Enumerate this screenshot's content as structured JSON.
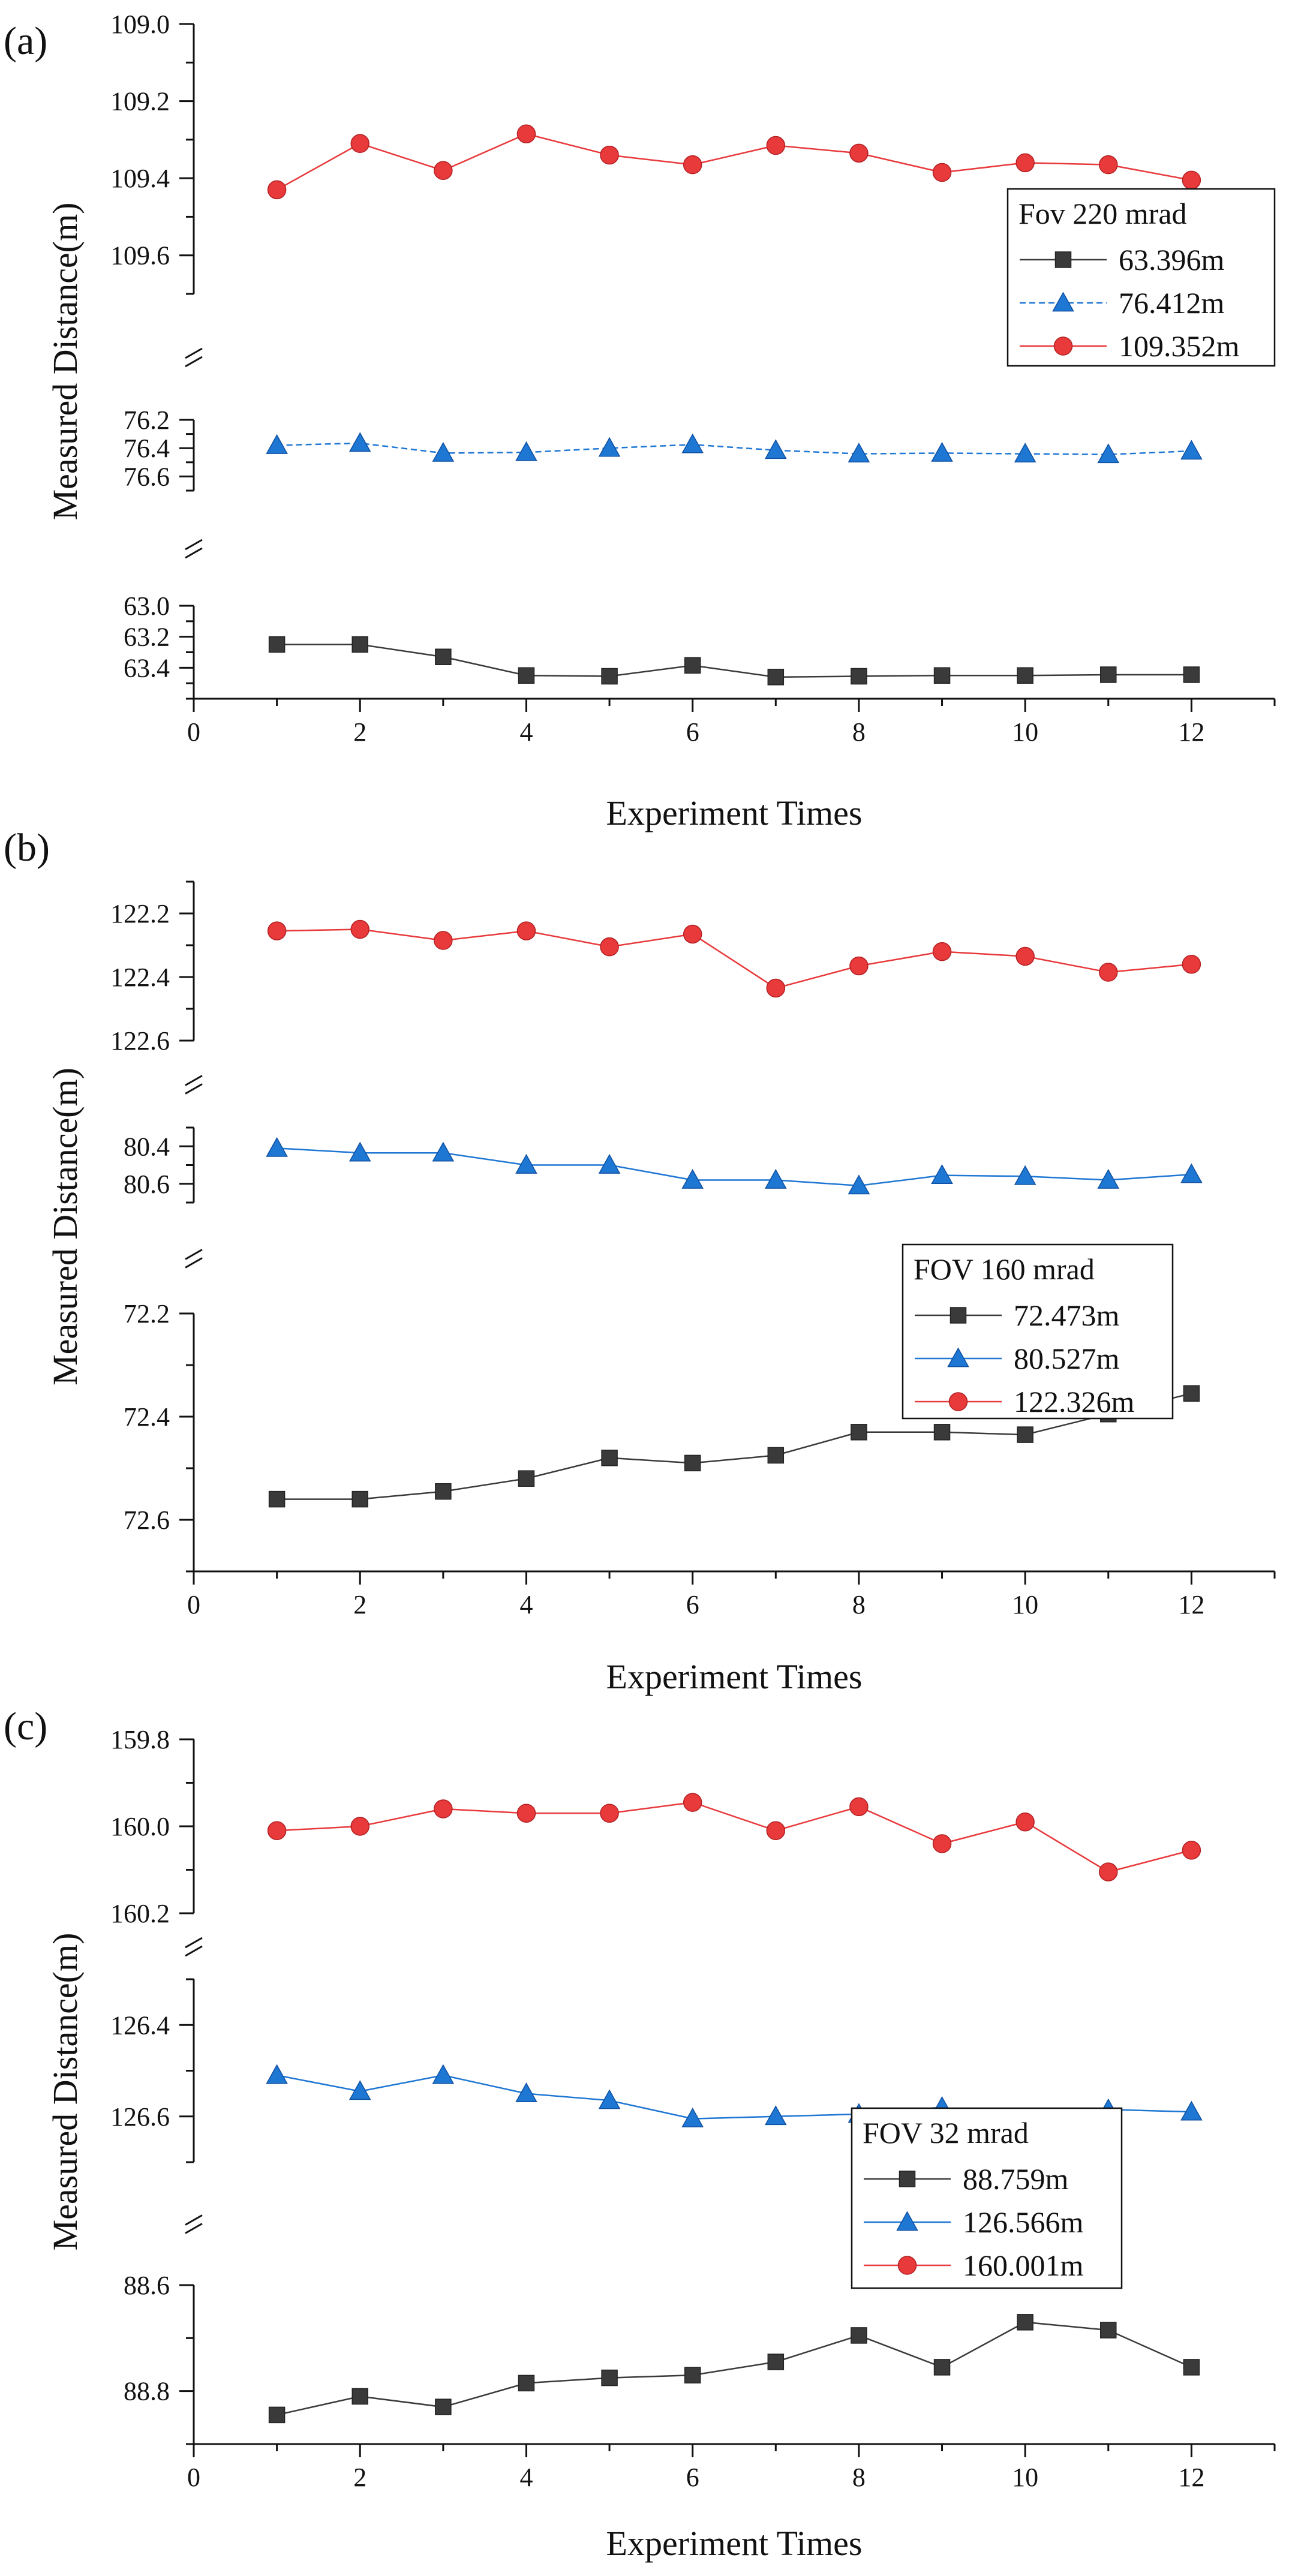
{
  "chart_data": [
    {
      "type": "line",
      "panel_label": "(a)",
      "xlabel": "Experiment Times",
      "ylabel": "Measured Distance(m)",
      "x": [
        1,
        2,
        3,
        4,
        5,
        6,
        7,
        8,
        9,
        10,
        11,
        12
      ],
      "xlim": [
        0,
        13
      ],
      "xticks": [
        "0",
        "2",
        "4",
        "6",
        "8",
        "10",
        "12"
      ],
      "broken_axis": true,
      "legend_title": "Fov 220 mrad",
      "legend_placement": "upper-right",
      "segments": [
        {
          "ylim": [
            63.0,
            63.6
          ],
          "yticks": [
            "63.0",
            "63.2",
            "63.4"
          ],
          "series": {
            "name": "63.396m",
            "marker": "square",
            "color": "#3a3a3a",
            "line": "solid",
            "values": [
              63.25,
              63.25,
              63.33,
              63.45,
              63.455,
              63.385,
              63.46,
              63.455,
              63.45,
              63.45,
              63.445,
              63.445
            ]
          }
        },
        {
          "ylim": [
            76.2,
            76.7
          ],
          "yticks": [
            "76.2",
            "76.4",
            "76.6"
          ],
          "series": {
            "name": "76.412m",
            "marker": "triangle",
            "color": "#1f77d4",
            "line": "dashed",
            "values": [
              76.38,
              76.365,
              76.435,
              76.43,
              76.4,
              76.375,
              76.415,
              76.44,
              76.435,
              76.44,
              76.445,
              76.42
            ]
          }
        },
        {
          "ylim": [
            109.0,
            109.7
          ],
          "yticks": [
            "109.0",
            "109.2",
            "109.4",
            "109.6"
          ],
          "series": {
            "name": "109.352m",
            "marker": "circle",
            "color": "#e8393b",
            "line": "solid",
            "values": [
              109.43,
              109.31,
              109.38,
              109.285,
              109.34,
              109.365,
              109.315,
              109.335,
              109.385,
              109.36,
              109.365,
              109.405
            ]
          }
        }
      ]
    },
    {
      "type": "line",
      "panel_label": "(b)",
      "xlabel": "Experiment Times",
      "ylabel": "Measured Distance(m)",
      "x": [
        1,
        2,
        3,
        4,
        5,
        6,
        7,
        8,
        9,
        10,
        11,
        12
      ],
      "xlim": [
        0,
        13
      ],
      "xticks": [
        "0",
        "2",
        "4",
        "6",
        "8",
        "10",
        "12"
      ],
      "broken_axis": true,
      "legend_title": "FOV 160 mrad",
      "legend_placement": "center-right",
      "segments": [
        {
          "ylim": [
            72.2,
            72.7
          ],
          "yticks": [
            "72.2",
            "72.4",
            "72.6"
          ],
          "series": {
            "name": "72.473m",
            "marker": "square",
            "color": "#3a3a3a",
            "line": "solid",
            "values": [
              72.56,
              72.56,
              72.545,
              72.52,
              72.48,
              72.49,
              72.475,
              72.43,
              72.43,
              72.435,
              72.395,
              72.355
            ]
          }
        },
        {
          "ylim": [
            80.3,
            80.7
          ],
          "yticks": [
            "80.4",
            "80.6"
          ],
          "series": {
            "name": "80.527m",
            "marker": "triangle",
            "color": "#1f77d4",
            "line": "solid",
            "values": [
              80.41,
              80.435,
              80.435,
              80.5,
              80.5,
              80.58,
              80.58,
              80.61,
              80.555,
              80.56,
              80.58,
              80.55
            ]
          }
        },
        {
          "ylim": [
            122.1,
            122.6
          ],
          "yticks": [
            "122.2",
            "122.4",
            "122.6"
          ],
          "series": {
            "name": "122.326m",
            "marker": "circle",
            "color": "#e8393b",
            "line": "solid",
            "values": [
              122.255,
              122.25,
              122.285,
              122.255,
              122.305,
              122.265,
              122.435,
              122.365,
              122.32,
              122.335,
              122.385,
              122.36
            ]
          }
        }
      ]
    },
    {
      "type": "line",
      "panel_label": "(c)",
      "xlabel": "Experiment Times",
      "ylabel": "Measured Distance(m)",
      "x": [
        1,
        2,
        3,
        4,
        5,
        6,
        7,
        8,
        9,
        10,
        11,
        12
      ],
      "xlim": [
        0,
        13
      ],
      "xticks": [
        "0",
        "2",
        "4",
        "6",
        "8",
        "10",
        "12"
      ],
      "broken_axis": true,
      "legend_title": "FOV 32 mrad",
      "legend_placement": "lower-right",
      "segments": [
        {
          "ylim": [
            88.6,
            88.9
          ],
          "yticks": [
            "88.6",
            "88.8"
          ],
          "series": {
            "name": "88.759m",
            "marker": "square",
            "color": "#3a3a3a",
            "line": "solid",
            "values": [
              88.845,
              88.81,
              88.83,
              88.785,
              88.775,
              88.77,
              88.745,
              88.695,
              88.755,
              88.67,
              88.685,
              88.755
            ]
          }
        },
        {
          "ylim": [
            126.3,
            126.7
          ],
          "yticks": [
            "126.4",
            "126.6"
          ],
          "series": {
            "name": "126.566m",
            "marker": "triangle",
            "color": "#1f77d4",
            "line": "solid",
            "values": [
              126.51,
              126.545,
              126.51,
              126.55,
              126.565,
              126.605,
              126.6,
              126.595,
              126.58,
              126.605,
              126.585,
              126.59
            ]
          }
        },
        {
          "ylim": [
            159.8,
            160.2
          ],
          "yticks": [
            "159.8",
            "160.0",
            "160.2"
          ],
          "series": {
            "name": "160.001m",
            "marker": "circle",
            "color": "#e8393b",
            "line": "solid",
            "values": [
              160.01,
              160.0,
              159.96,
              159.97,
              159.97,
              159.945,
              160.01,
              159.955,
              160.04,
              159.99,
              160.105,
              160.055
            ]
          }
        }
      ]
    }
  ]
}
